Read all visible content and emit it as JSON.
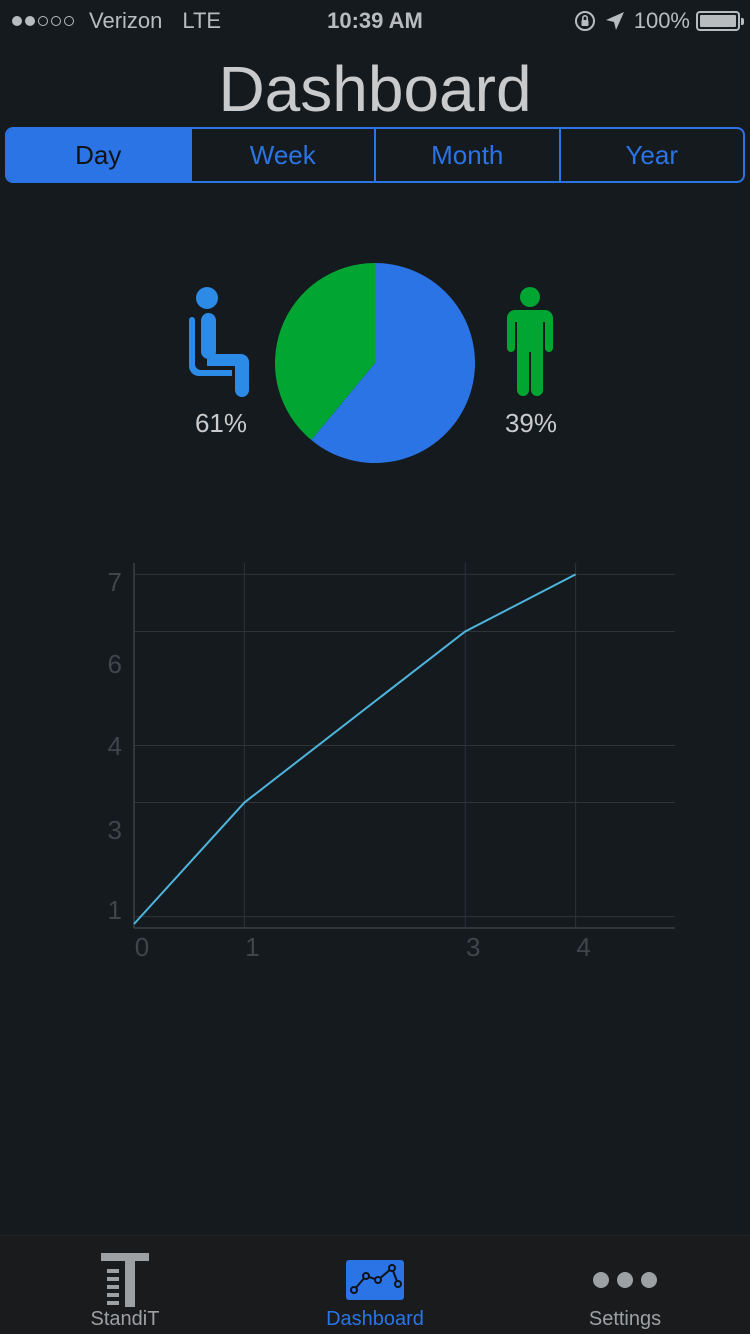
{
  "status_bar": {
    "carrier": "Verizon",
    "network": "LTE",
    "time": "10:39 AM",
    "battery": "100%"
  },
  "page": {
    "title": "Dashboard"
  },
  "segments": [
    {
      "label": "Day",
      "selected": true
    },
    {
      "label": "Week",
      "selected": false
    },
    {
      "label": "Month",
      "selected": false
    },
    {
      "label": "Year",
      "selected": false
    }
  ],
  "summary": {
    "sitting_percent": "61%",
    "standing_percent": "39%",
    "sit_icon": "person-sitting-icon",
    "stand_icon": "person-standing-icon"
  },
  "chart_data": [
    {
      "type": "pie",
      "labels": [
        "61%",
        "39%"
      ],
      "values": [
        61,
        39
      ],
      "colors": [
        "#2b74e5",
        "#00a532"
      ]
    },
    {
      "type": "line",
      "x": [
        0,
        1,
        3,
        4
      ],
      "y": [
        1,
        3,
        6,
        7
      ],
      "x_ticks": [
        "0",
        "1",
        "3",
        "4"
      ],
      "y_ticks": [
        "1",
        "3",
        "4",
        "6",
        "7"
      ],
      "grid": true,
      "color": "#4fb4dc"
    }
  ],
  "tab_bar": {
    "tabs": [
      {
        "label": "StandiT",
        "icon": "standit-logo-icon",
        "active": false
      },
      {
        "label": "Dashboard",
        "icon": "line-chart-icon",
        "active": true
      },
      {
        "label": "Settings",
        "icon": "more-dots-icon",
        "active": false
      }
    ]
  },
  "colors": {
    "background": "#151a1f",
    "accent": "#2b74e5",
    "standing": "#00a532",
    "sitting_icon": "#2b8be6"
  }
}
